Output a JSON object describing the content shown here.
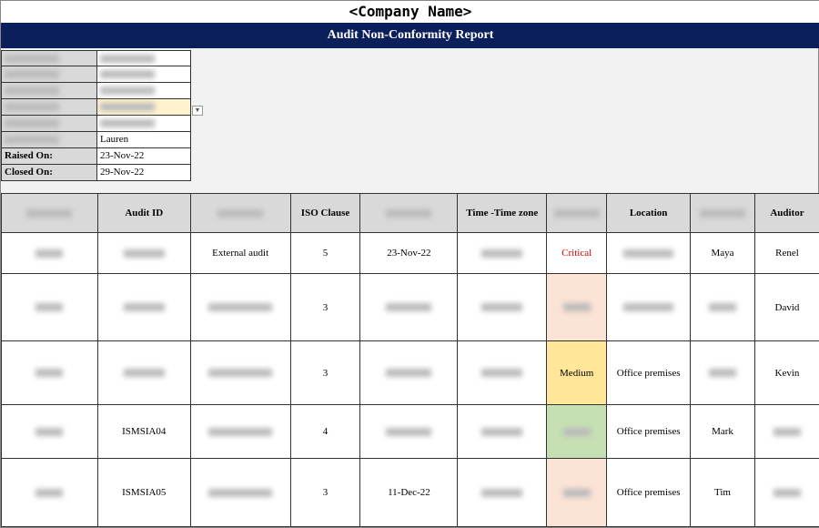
{
  "company": "<Company Name>",
  "report_title": "Audit Non-Conformity Report",
  "form": [
    {
      "label": "",
      "value": ""
    },
    {
      "label": "",
      "value": ""
    },
    {
      "label": "",
      "value": ""
    },
    {
      "label": "",
      "value": "",
      "dropdown": true
    },
    {
      "label": "",
      "value": ""
    },
    {
      "label": "",
      "value": "Lauren"
    },
    {
      "label": "Raised On:",
      "value": "23-Nov-22"
    },
    {
      "label": "Closed On:",
      "value": "29-Nov-22"
    }
  ],
  "table": {
    "headers": [
      "",
      "Audit ID",
      "",
      "ISO Clause",
      "",
      "Time -Time zone",
      "",
      "Location",
      "",
      "Auditor"
    ],
    "rows": [
      {
        "audit_id": "",
        "type": "External audit",
        "clause": "5",
        "date": "23-Nov-22",
        "severity": "Critical",
        "sev_class": "crit",
        "location": "",
        "auditee": "Maya",
        "auditor": "Renel"
      },
      {
        "audit_id": "",
        "type": "",
        "clause": "3",
        "date": "",
        "severity": "",
        "sev_class": "hi",
        "location": "",
        "auditee": "",
        "auditor": "David"
      },
      {
        "audit_id": "",
        "type": "",
        "clause": "3",
        "date": "",
        "severity": "Medium",
        "sev_class": "med",
        "location": "Office premises",
        "auditee": "",
        "auditor": "Kevin"
      },
      {
        "audit_id": "ISMSIA04",
        "type": "",
        "clause": "4",
        "date": "",
        "severity": "",
        "sev_class": "low",
        "location": "Office premises",
        "auditee": "Mark",
        "auditor": ""
      },
      {
        "audit_id": "ISMSIA05",
        "type": "",
        "clause": "3",
        "date": "11-Dec-22",
        "severity": "",
        "sev_class": "hi",
        "location": "Office premises",
        "auditee": "Tim",
        "auditor": ""
      }
    ]
  },
  "colors": {
    "header_bar": "#0b1f5c",
    "critical": "#e00000",
    "high": "#fbe3d6",
    "medium": "#ffe699",
    "low": "#c6e0b4"
  }
}
